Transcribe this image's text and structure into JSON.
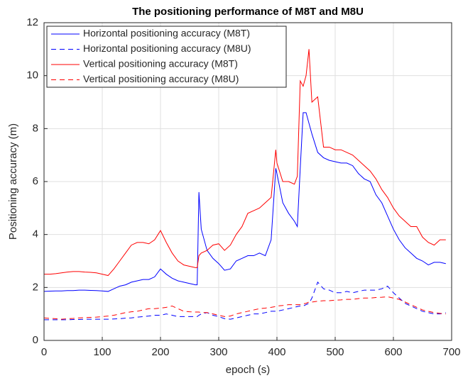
{
  "chart_data": {
    "type": "line",
    "title": "The positioning performance of M8T and M8U",
    "x_label": "epoch (s)",
    "y_label": "Positioning accuracy (m)",
    "x": [
      0,
      10,
      20,
      30,
      40,
      50,
      60,
      70,
      80,
      90,
      100,
      110,
      120,
      130,
      140,
      150,
      160,
      170,
      180,
      190,
      200,
      210,
      220,
      230,
      240,
      250,
      260,
      263,
      266,
      270,
      280,
      290,
      300,
      310,
      320,
      330,
      340,
      350,
      360,
      370,
      380,
      390,
      398,
      400,
      410,
      420,
      430,
      435,
      440,
      445,
      450,
      455,
      460,
      470,
      480,
      490,
      500,
      510,
      520,
      530,
      540,
      550,
      560,
      570,
      580,
      590,
      600,
      610,
      620,
      630,
      640,
      650,
      660,
      670,
      680,
      690
    ],
    "series": [
      {
        "name": "Horizontal positioning accuracy (M8T)",
        "color": "#0000ff",
        "style": "solid",
        "values": [
          1.85,
          1.86,
          1.87,
          1.87,
          1.88,
          1.88,
          1.9,
          1.9,
          1.89,
          1.88,
          1.87,
          1.85,
          1.95,
          2.05,
          2.1,
          2.2,
          2.25,
          2.3,
          2.3,
          2.4,
          2.7,
          2.5,
          2.35,
          2.25,
          2.2,
          2.15,
          2.1,
          2.1,
          5.6,
          4.2,
          3.4,
          3.1,
          2.9,
          2.65,
          2.7,
          3.0,
          3.1,
          3.2,
          3.2,
          3.3,
          3.2,
          3.8,
          6.5,
          6.3,
          5.2,
          4.8,
          4.5,
          4.3,
          6.5,
          8.6,
          8.6,
          8.2,
          7.8,
          7.1,
          6.9,
          6.8,
          6.75,
          6.7,
          6.7,
          6.6,
          6.3,
          6.1,
          6.0,
          5.5,
          5.2,
          4.7,
          4.2,
          3.8,
          3.5,
          3.3,
          3.1,
          3.0,
          2.85,
          2.95,
          2.95,
          2.9
        ]
      },
      {
        "name": "Horizontal positioning accuracy (M8U)",
        "color": "#0000ff",
        "style": "dashed",
        "values": [
          0.78,
          0.78,
          0.78,
          0.78,
          0.78,
          0.79,
          0.79,
          0.8,
          0.8,
          0.8,
          0.8,
          0.8,
          0.81,
          0.82,
          0.84,
          0.85,
          0.88,
          0.9,
          0.92,
          0.95,
          0.95,
          1.0,
          0.95,
          0.9,
          0.9,
          0.9,
          0.9,
          0.9,
          0.95,
          1.0,
          1.05,
          0.95,
          0.9,
          0.82,
          0.8,
          0.85,
          0.9,
          0.95,
          1.0,
          1.0,
          1.05,
          1.1,
          1.1,
          1.1,
          1.15,
          1.2,
          1.25,
          1.28,
          1.3,
          1.3,
          1.35,
          1.4,
          1.6,
          2.2,
          1.95,
          1.9,
          1.8,
          1.8,
          1.85,
          1.8,
          1.85,
          1.9,
          1.9,
          1.9,
          1.95,
          2.05,
          1.8,
          1.6,
          1.4,
          1.3,
          1.2,
          1.1,
          1.05,
          1.0,
          1.0,
          1.05
        ]
      },
      {
        "name": "Vertical positioning accuracy (M8T)",
        "color": "#ff0000",
        "style": "solid",
        "values": [
          2.5,
          2.5,
          2.52,
          2.55,
          2.58,
          2.6,
          2.6,
          2.58,
          2.57,
          2.55,
          2.5,
          2.45,
          2.7,
          3.0,
          3.3,
          3.6,
          3.7,
          3.7,
          3.65,
          3.8,
          4.15,
          3.7,
          3.3,
          3.0,
          2.85,
          2.8,
          2.75,
          2.75,
          3.2,
          3.3,
          3.4,
          3.6,
          3.65,
          3.4,
          3.6,
          4.0,
          4.3,
          4.8,
          4.9,
          5.0,
          5.2,
          5.4,
          7.2,
          6.7,
          6.0,
          6.0,
          5.9,
          6.2,
          9.8,
          9.6,
          10.0,
          11.0,
          9.0,
          9.2,
          7.3,
          7.3,
          7.2,
          7.2,
          7.1,
          7.0,
          6.8,
          6.6,
          6.4,
          6.1,
          5.7,
          5.4,
          5.0,
          4.7,
          4.5,
          4.3,
          4.3,
          3.9,
          3.7,
          3.6,
          3.8,
          3.8
        ]
      },
      {
        "name": "Vertical positioning accuracy (M8U)",
        "color": "#ff0000",
        "style": "dashed",
        "values": [
          0.85,
          0.83,
          0.82,
          0.8,
          0.82,
          0.83,
          0.85,
          0.86,
          0.87,
          0.88,
          0.9,
          0.92,
          0.95,
          1.0,
          1.05,
          1.08,
          1.1,
          1.15,
          1.2,
          1.2,
          1.22,
          1.25,
          1.3,
          1.2,
          1.1,
          1.08,
          1.07,
          1.07,
          1.07,
          1.05,
          1.05,
          1.0,
          0.95,
          0.9,
          0.92,
          1.0,
          1.05,
          1.1,
          1.15,
          1.2,
          1.22,
          1.25,
          1.28,
          1.3,
          1.32,
          1.35,
          1.35,
          1.35,
          1.35,
          1.38,
          1.4,
          1.45,
          1.45,
          1.48,
          1.5,
          1.5,
          1.52,
          1.53,
          1.55,
          1.55,
          1.58,
          1.6,
          1.6,
          1.62,
          1.63,
          1.65,
          1.6,
          1.55,
          1.45,
          1.35,
          1.25,
          1.15,
          1.1,
          1.05,
          1.02,
          1.0
        ]
      }
    ],
    "xlim": [
      0,
      700
    ],
    "xticks": [
      0,
      100,
      200,
      300,
      400,
      500,
      600,
      700
    ],
    "ylim": [
      0,
      12
    ],
    "yticks": [
      0,
      2,
      4,
      6,
      8,
      10,
      12
    ],
    "grid": true,
    "legend": "upper left"
  }
}
